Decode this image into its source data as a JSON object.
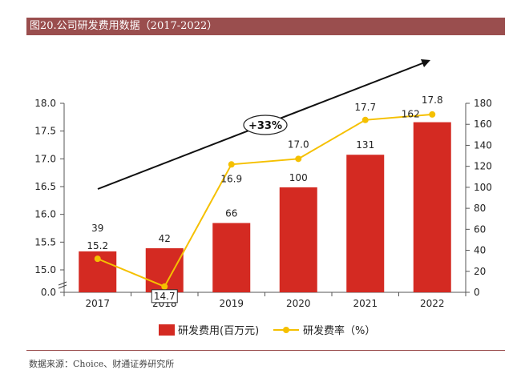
{
  "header": {
    "title": "图20.公司研发费用数据（2017-2022）"
  },
  "footer": {
    "source": "数据来源：Choice、财通证券研究所"
  },
  "colors": {
    "bar": "#d42a22",
    "line": "#f5c000",
    "header_bg": "#9a4e4e",
    "arrow": "#111111"
  },
  "chart_data": {
    "type": "bar",
    "categories": [
      "2017",
      "2018",
      "2019",
      "2020",
      "2021",
      "2022"
    ],
    "series": [
      {
        "name": "研发费用(百万元)",
        "type": "bar",
        "axis": "right",
        "values": [
          39,
          42,
          66,
          100,
          131,
          162
        ]
      },
      {
        "name": "研发费率（%）",
        "type": "line",
        "axis": "left",
        "values": [
          15.2,
          14.7,
          16.9,
          17.0,
          17.7,
          17.8
        ]
      }
    ],
    "left_axis": {
      "ticks": [
        "0.0",
        "15.0",
        "15.5",
        "16.0",
        "16.5",
        "17.0",
        "17.5",
        "18.0"
      ],
      "broken": true
    },
    "right_axis": {
      "ticks": [
        "0",
        "20",
        "40",
        "60",
        "80",
        "100",
        "120",
        "140",
        "160",
        "180"
      ],
      "ylim": [
        0,
        180
      ]
    },
    "annotation": {
      "text": "+33%"
    },
    "legend_position": "bottom"
  }
}
